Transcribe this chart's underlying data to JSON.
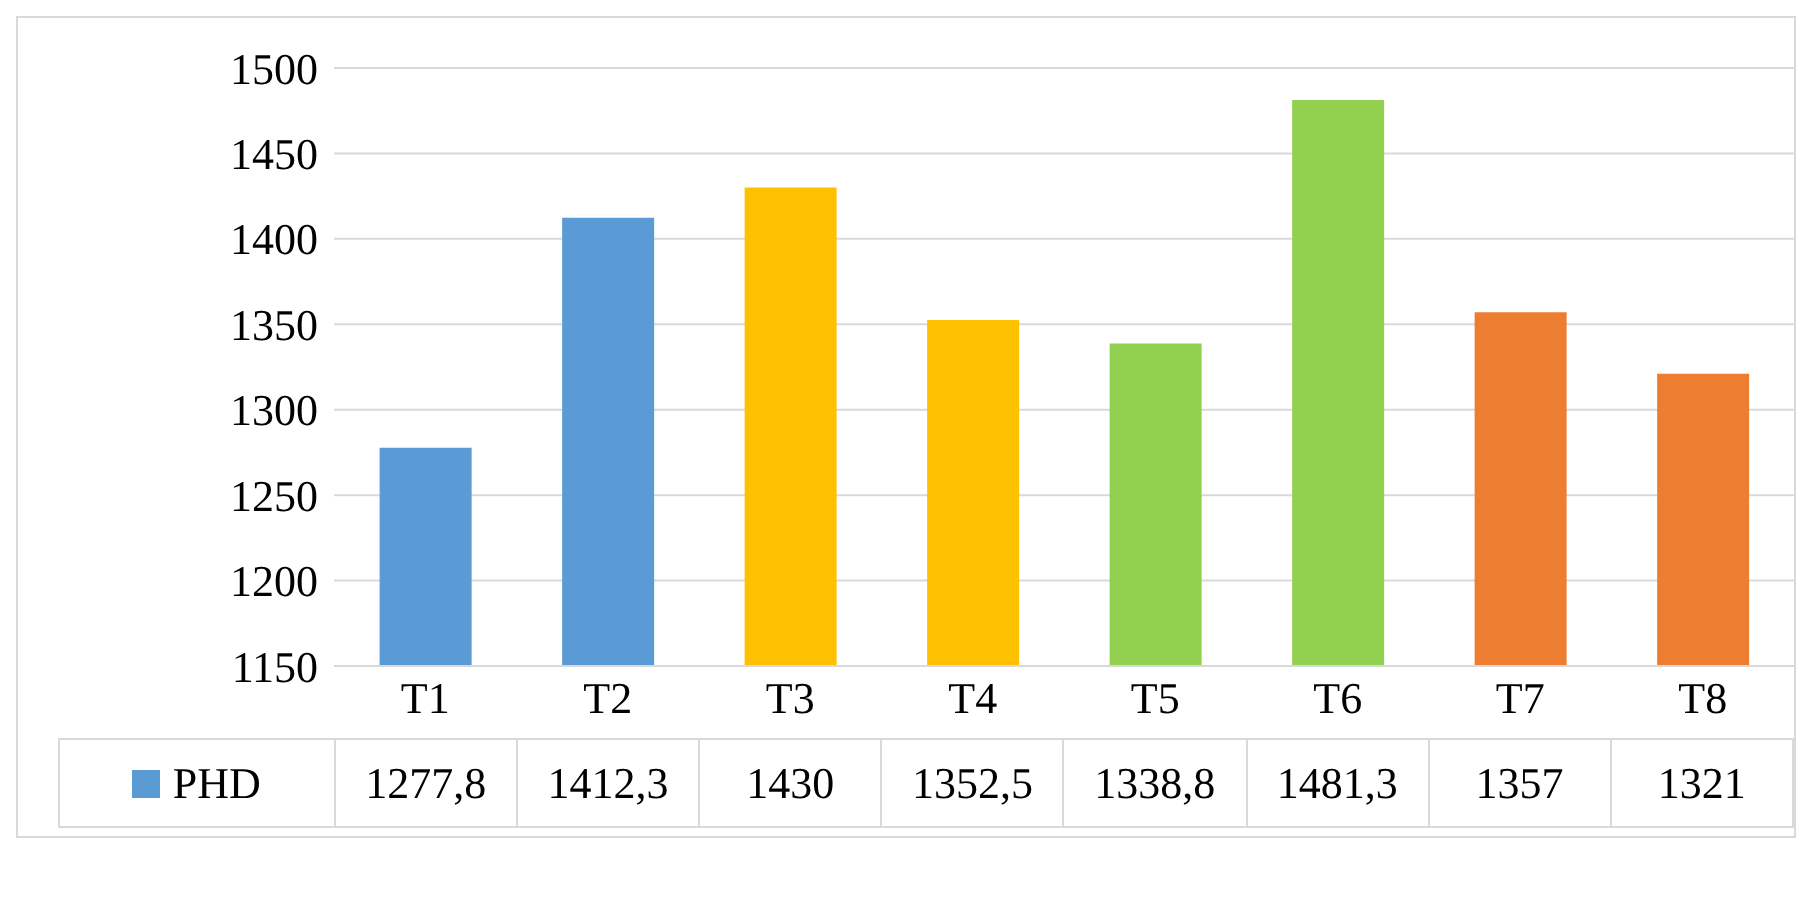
{
  "chart_data": {
    "type": "bar",
    "categories": [
      "T1",
      "T2",
      "T3",
      "T4",
      "T5",
      "T6",
      "T7",
      "T8"
    ],
    "series": [
      {
        "name": "PHD",
        "color": "#5b9bd5",
        "colors": [
          "#5b9bd5",
          "#5b9bd5",
          "#ffc000",
          "#ffc000",
          "#92d050",
          "#92d050",
          "#ed7d31",
          "#ed7d31"
        ],
        "values": [
          1277.8,
          1412.3,
          1430,
          1352.5,
          1338.8,
          1481.3,
          1357,
          1321
        ],
        "value_labels": [
          "1277,8",
          "1412,3",
          "1430",
          "1352,5",
          "1338,8",
          "1481,3",
          "1357",
          "1321"
        ]
      }
    ],
    "ylim": [
      1150,
      1500
    ],
    "yticks": [
      1150,
      1200,
      1250,
      1300,
      1350,
      1400,
      1450,
      1500
    ],
    "grid": "y",
    "legend": "bottom"
  }
}
